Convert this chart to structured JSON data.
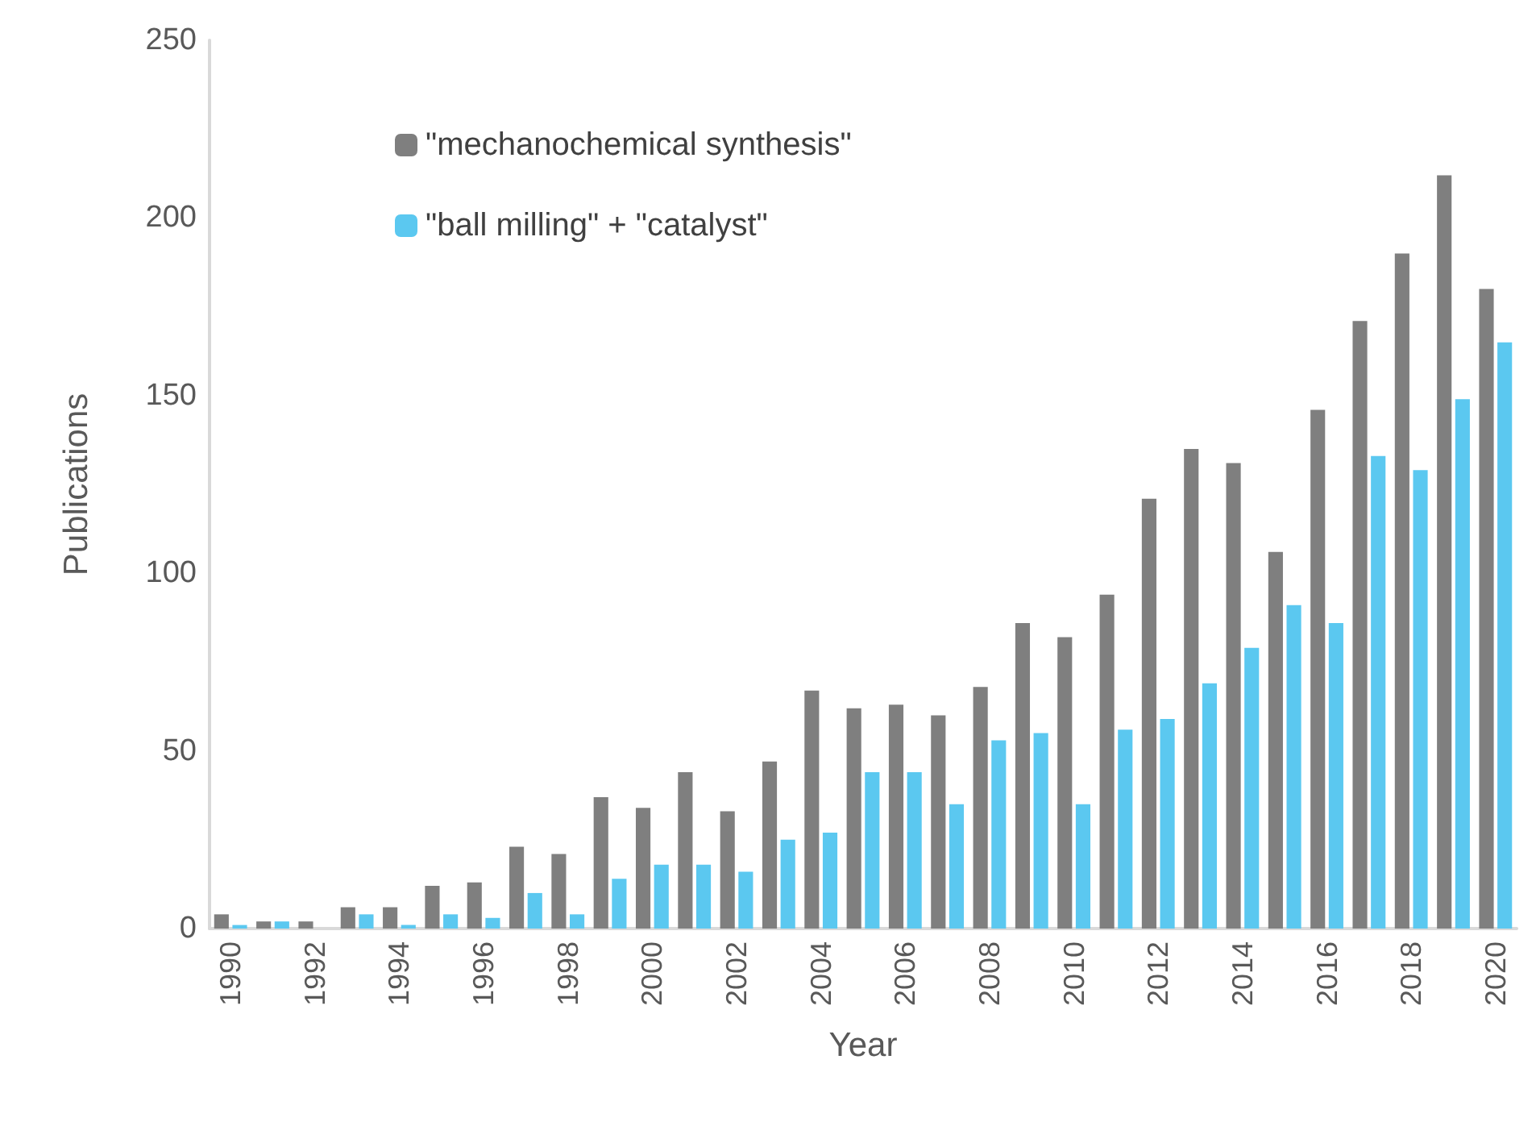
{
  "chart_data": {
    "type": "bar",
    "xlabel": "Year",
    "ylabel": "Publications",
    "categories": [
      "1990",
      null,
      "1992",
      null,
      "1994",
      null,
      "1996",
      null,
      "1998",
      null,
      "2000",
      null,
      "2002",
      null,
      "2004",
      null,
      "2006",
      null,
      "2008",
      null,
      "2010",
      null,
      "2012",
      null,
      "2014",
      null,
      "2016",
      null,
      "2018",
      null,
      "2020"
    ],
    "series": [
      {
        "name": "\"mechanochemical synthesis\"",
        "color": "#7f7f7f",
        "values": [
          4,
          2,
          2,
          6,
          6,
          12,
          13,
          23,
          21,
          37,
          34,
          44,
          33,
          47,
          67,
          62,
          63,
          60,
          68,
          86,
          82,
          94,
          121,
          135,
          131,
          106,
          146,
          171,
          190,
          212,
          180
        ]
      },
      {
        "name": "\"ball milling\" + \"catalyst\"",
        "color": "#5bc8f0",
        "values": [
          1,
          2,
          0,
          4,
          1,
          4,
          3,
          10,
          4,
          14,
          18,
          18,
          16,
          25,
          27,
          44,
          44,
          35,
          53,
          55,
          35,
          56,
          59,
          69,
          79,
          91,
          86,
          133,
          129,
          149,
          165
        ]
      }
    ],
    "ylim": [
      0,
      250
    ],
    "yticks": [
      0,
      50,
      100,
      150,
      200,
      250
    ],
    "grid": false,
    "legend": "top left"
  }
}
